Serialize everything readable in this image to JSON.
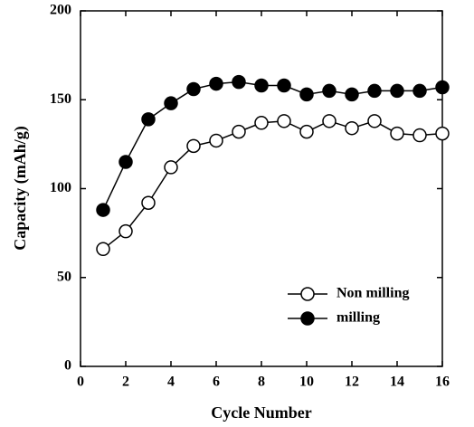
{
  "chart_data": {
    "type": "line",
    "xlabel": "Cycle Number",
    "ylabel": "Capacity (mAh/g)",
    "x": [
      1,
      2,
      3,
      4,
      5,
      6,
      7,
      8,
      9,
      10,
      11,
      12,
      13,
      14,
      15,
      16
    ],
    "series": [
      {
        "name": "Non milling",
        "color": "#ffffff",
        "values": [
          66,
          76,
          92,
          112,
          124,
          127,
          132,
          137,
          138,
          132,
          138,
          134,
          138,
          131,
          130,
          131
        ]
      },
      {
        "name": "milling",
        "color": "#000000",
        "values": [
          88,
          115,
          139,
          148,
          156,
          159,
          160,
          158,
          158,
          153,
          155,
          153,
          155,
          155,
          155,
          157
        ]
      }
    ],
    "xlim": [
      0,
      16
    ],
    "xticks": [
      0,
      2,
      4,
      6,
      8,
      10,
      12,
      14,
      16
    ],
    "ylim": [
      0,
      200
    ],
    "yticks": [
      0,
      50,
      100,
      150,
      200
    ],
    "grid": false,
    "legend": "lower right"
  }
}
